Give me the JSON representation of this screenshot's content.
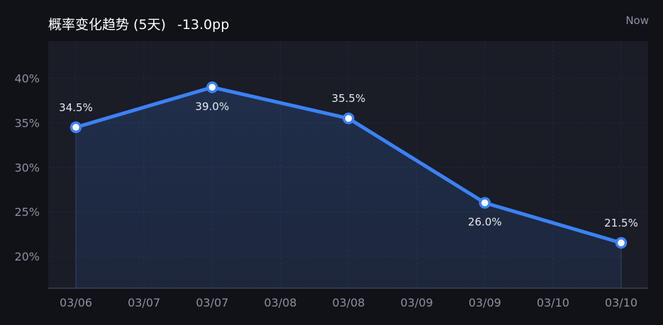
{
  "header": {
    "title": "概率变化趋势 (5天)",
    "change": "-13.0pp",
    "now_label": "Now"
  },
  "chart_data": {
    "type": "line",
    "title": "概率变化趋势 (5天)",
    "x": [
      "03/06",
      "03/07",
      "03/08",
      "03/09",
      "03/10"
    ],
    "x_tick_labels": [
      "03/06",
      "03/07",
      "03/07",
      "03/08",
      "03/08",
      "03/09",
      "03/09",
      "03/10",
      "03/10"
    ],
    "series": [
      {
        "values": [
          34.5,
          39.0,
          35.5,
          26.0,
          21.5
        ],
        "data_labels": [
          "34.5%",
          "39.0%",
          "35.5%",
          "26.0%",
          "21.5%"
        ],
        "label_positions": [
          "above",
          "below",
          "above",
          "below",
          "above"
        ]
      }
    ],
    "y_ticks": [
      20,
      25,
      30,
      35,
      40
    ],
    "y_tick_labels": [
      "20%",
      "25%",
      "30%",
      "35%",
      "40%"
    ],
    "ylim": [
      16.4,
      44.2
    ],
    "grid": true,
    "colors": {
      "line": "#3b82f6",
      "point_fill": "#ffffff",
      "plot_bg": "#1a1c26",
      "grid": "#242838",
      "text": "#8b90a0",
      "label": "#e6e8ee"
    }
  }
}
